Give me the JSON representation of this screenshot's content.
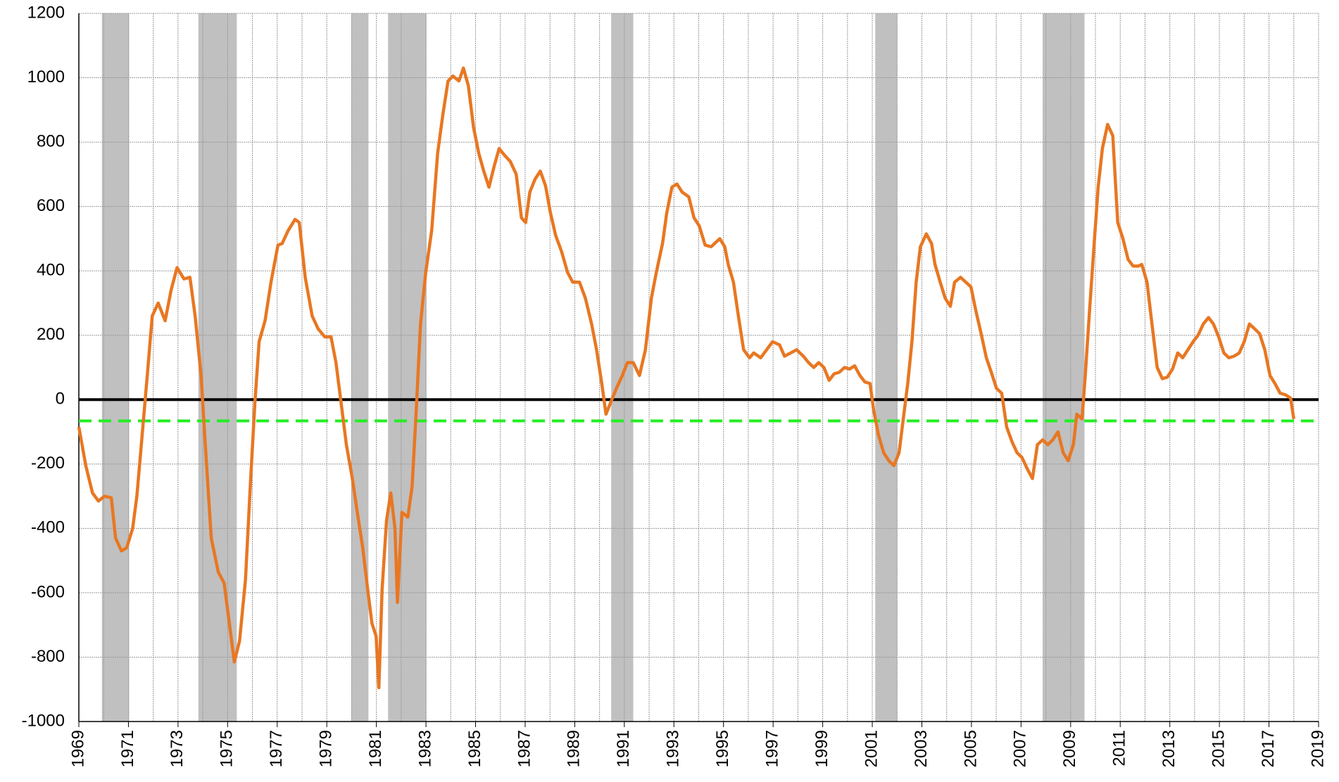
{
  "chart_data": {
    "type": "line",
    "color": "#e87722",
    "x": [
      1969.0,
      1969.28,
      1969.55,
      1969.79,
      1970.03,
      1970.31,
      1970.48,
      1970.72,
      1970.93,
      1971.17,
      1971.34,
      1971.52,
      1971.76,
      1971.96,
      1972.2,
      1972.48,
      1972.72,
      1972.96,
      1973.24,
      1973.48,
      1973.69,
      1973.93,
      1974.1,
      1974.34,
      1974.62,
      1974.86,
      1975.07,
      1975.27,
      1975.48,
      1975.72,
      1975.93,
      1976.1,
      1976.27,
      1976.51,
      1976.75,
      1977.03,
      1977.2,
      1977.44,
      1977.72,
      1977.89,
      1978.13,
      1978.41,
      1978.65,
      1978.92,
      1979.17,
      1979.37,
      1979.61,
      1979.79,
      1980.03,
      1980.23,
      1980.44,
      1980.65,
      1980.82,
      1980.99,
      1981.1,
      1981.23,
      1981.41,
      1981.58,
      1981.75,
      1981.85,
      1982.03,
      1982.27,
      1982.44,
      1982.61,
      1982.78,
      1982.99,
      1983.23,
      1983.47,
      1983.68,
      1983.89,
      1984.09,
      1984.33,
      1984.51,
      1984.71,
      1984.92,
      1985.13,
      1985.33,
      1985.54,
      1985.75,
      1985.95,
      1986.16,
      1986.4,
      1986.64,
      1986.85,
      1987.02,
      1987.19,
      1987.4,
      1987.61,
      1987.82,
      1988.02,
      1988.23,
      1988.47,
      1988.71,
      1988.92,
      1989.19,
      1989.43,
      1989.68,
      1989.88,
      1990.09,
      1990.26,
      1990.47,
      1990.68,
      1990.92,
      1991.12,
      1991.36,
      1991.61,
      1991.85,
      1992.09,
      1992.29,
      1992.54,
      1992.71,
      1992.92,
      1993.12,
      1993.33,
      1993.6,
      1993.81,
      1994.02,
      1994.26,
      1994.5,
      1994.71,
      1994.85,
      1995.05,
      1995.19,
      1995.4,
      1995.6,
      1995.81,
      1996.05,
      1996.22,
      1996.5,
      1996.74,
      1996.98,
      1997.26,
      1997.46,
      1997.71,
      1997.95,
      1998.22,
      1998.43,
      1998.64,
      1998.84,
      1999.05,
      1999.26,
      1999.46,
      1999.67,
      1999.88,
      2000.08,
      2000.29,
      2000.5,
      2000.7,
      2000.91,
      2001.05,
      2001.25,
      2001.46,
      2001.67,
      2001.87,
      2002.08,
      2002.25,
      2002.43,
      2002.6,
      2002.77,
      2002.94,
      2003.18,
      2003.39,
      2003.53,
      2003.74,
      2003.94,
      2004.15,
      2004.32,
      2004.56,
      2004.77,
      2004.98,
      2005.18,
      2005.39,
      2005.6,
      2005.8,
      2006.01,
      2006.22,
      2006.42,
      2006.63,
      2006.84,
      2007.04,
      2007.25,
      2007.46,
      2007.66,
      2007.87,
      2008.08,
      2008.28,
      2008.49,
      2008.7,
      2008.9,
      2009.11,
      2009.25,
      2009.46,
      2009.59,
      2009.77,
      2009.94,
      2010.11,
      2010.28,
      2010.49,
      2010.7,
      2010.9,
      2011.11,
      2011.32,
      2011.52,
      2011.73,
      2011.87,
      2012.08,
      2012.28,
      2012.49,
      2012.7,
      2012.9,
      2013.11,
      2013.32,
      2013.52,
      2013.73,
      2013.94,
      2014.14,
      2014.35,
      2014.56,
      2014.76,
      2014.97,
      2015.18,
      2015.38,
      2015.59,
      2015.8,
      2016.0,
      2016.21,
      2016.42,
      2016.62,
      2016.83,
      2017.04,
      2017.24,
      2017.45,
      2017.66,
      2017.87,
      2018.0
    ],
    "values": [
      -85,
      -205,
      -290,
      -315,
      -300,
      -305,
      -430,
      -470,
      -460,
      -400,
      -300,
      -140,
      75,
      260,
      300,
      245,
      340,
      410,
      375,
      380,
      260,
      75,
      -140,
      -430,
      -535,
      -570,
      -695,
      -815,
      -750,
      -560,
      -245,
      -10,
      180,
      245,
      365,
      480,
      485,
      525,
      560,
      550,
      380,
      260,
      220,
      195,
      195,
      115,
      -30,
      -140,
      -245,
      -350,
      -455,
      -590,
      -695,
      -735,
      -895,
      -590,
      -375,
      -290,
      -400,
      -630,
      -350,
      -365,
      -270,
      -30,
      235,
      395,
      525,
      765,
      885,
      990,
      1005,
      990,
      1030,
      975,
      845,
      765,
      710,
      660,
      725,
      780,
      760,
      740,
      700,
      565,
      550,
      645,
      685,
      710,
      665,
      580,
      510,
      460,
      395,
      365,
      365,
      315,
      235,
      155,
      50,
      -45,
      -5,
      35,
      75,
      115,
      115,
      75,
      155,
      315,
      395,
      485,
      580,
      660,
      670,
      645,
      630,
      565,
      540,
      480,
      475,
      490,
      500,
      475,
      420,
      365,
      260,
      155,
      130,
      145,
      130,
      155,
      180,
      170,
      135,
      145,
      155,
      135,
      115,
      100,
      115,
      100,
      60,
      80,
      85,
      100,
      95,
      105,
      75,
      55,
      50,
      -30,
      -110,
      -165,
      -190,
      -205,
      -165,
      -60,
      50,
      180,
      365,
      475,
      515,
      485,
      420,
      365,
      315,
      290,
      365,
      380,
      365,
      350,
      275,
      205,
      130,
      85,
      35,
      20,
      -85,
      -130,
      -165,
      -180,
      -215,
      -245,
      -140,
      -125,
      -140,
      -125,
      -100,
      -165,
      -190,
      -140,
      -45,
      -60,
      75,
      285,
      475,
      660,
      780,
      855,
      820,
      550,
      500,
      435,
      415,
      415,
      420,
      365,
      235,
      100,
      65,
      70,
      95,
      145,
      130,
      155,
      180,
      200,
      235,
      255,
      235,
      195,
      145,
      130,
      135,
      145,
      180,
      235,
      220,
      205,
      155,
      75,
      50,
      20,
      15,
      5,
      -60
    ],
    "recessions": [
      [
        1969.93,
        1971.03
      ],
      [
        1973.82,
        1975.37
      ],
      [
        1979.99,
        1980.68
      ],
      [
        1981.47,
        1983.02
      ],
      [
        1990.47,
        1991.36
      ],
      [
        2001.12,
        2002.01
      ],
      [
        2007.87,
        2009.56
      ]
    ],
    "recession_color": "#c0c0c0",
    "reference_lines": [
      {
        "value": 0,
        "color": "#000000",
        "style": "solid"
      },
      {
        "value": -66,
        "color": "#22ee22",
        "style": "dashed"
      }
    ],
    "xlim": [
      1969,
      2019
    ],
    "xticks": [
      1969,
      1971,
      1973,
      1975,
      1977,
      1979,
      1981,
      1983,
      1985,
      1987,
      1989,
      1991,
      1993,
      1995,
      1997,
      1999,
      2001,
      2003,
      2005,
      2007,
      2009,
      2011,
      2013,
      2015,
      2017,
      2019
    ],
    "x_minor_ticks": [
      1970,
      1972,
      1974,
      1976,
      1978,
      1980,
      1982,
      1984,
      1986,
      1988,
      1990,
      1992,
      1994,
      1996,
      1998,
      2000,
      2002,
      2004,
      2006,
      2008,
      2010,
      2012,
      2014,
      2016,
      2018
    ],
    "ylim": [
      -1000,
      1200
    ],
    "yticks": [
      -1000,
      -800,
      -600,
      -400,
      -200,
      0,
      200,
      400,
      600,
      800,
      1000,
      1200
    ],
    "grid": true
  }
}
